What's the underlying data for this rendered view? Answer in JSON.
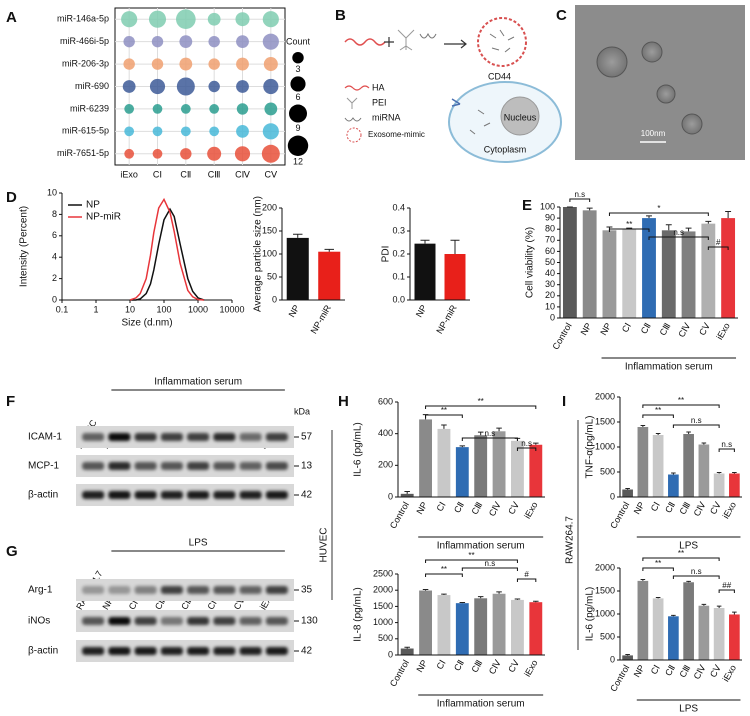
{
  "panel_labels": [
    "A",
    "B",
    "C",
    "D",
    "E",
    "F",
    "G",
    "H",
    "I"
  ],
  "diagram": {
    "legend": [
      "HA",
      "PEI",
      "miRNA",
      "Exosome-mimic"
    ],
    "receptor": "CD44",
    "nucleus": "Nucleus",
    "cytoplasm": "Cytoplasm"
  },
  "micrograph": {
    "scale_bar": "100nm"
  },
  "cell_labels": [
    "HUVEC",
    "RAW264.7"
  ],
  "blots": [
    {
      "header": "Inflammation serum",
      "unit": "kDa",
      "lanes": [
        "HUVEC",
        "NP",
        "CⅠ",
        "CⅡ",
        "CⅢ",
        "CⅣ",
        "CⅤ",
        "iExo"
      ],
      "rows": [
        {
          "name": "ICAM-1",
          "kda": 57
        },
        {
          "name": "MCP-1",
          "kda": 13
        },
        {
          "name": "β-actin",
          "kda": 42
        }
      ]
    },
    {
      "header": "LPS",
      "lanes": [
        "RAW264.7",
        "NP",
        "CⅠ",
        "CⅡ",
        "CⅢ",
        "CⅣ",
        "CⅤ",
        "iExo"
      ],
      "rows": [
        {
          "name": "Arg-1",
          "kda": 35
        },
        {
          "name": "iNOs",
          "kda": 130
        },
        {
          "name": "β-actin",
          "kda": 42
        }
      ]
    }
  ],
  "chart_data": [
    {
      "type": "dotplot",
      "categories": [
        "iExo",
        "CⅠ",
        "CⅡ",
        "CⅢ",
        "CⅣ",
        "CⅤ"
      ],
      "series": [
        {
          "name": "miR-146a-5p",
          "color": "#7fcdb0",
          "values": [
            7,
            8,
            11,
            4,
            5,
            7
          ]
        },
        {
          "name": "miR-466i-5p",
          "color": "#8e8fc2",
          "values": [
            3,
            3,
            4,
            3,
            4,
            7
          ]
        },
        {
          "name": "miR-206-3p",
          "color": "#f0a070",
          "values": [
            3,
            3,
            4,
            3,
            4,
            5
          ]
        },
        {
          "name": "miR-690",
          "color": "#3d5a98",
          "values": [
            4,
            6,
            9,
            3,
            4,
            6
          ]
        },
        {
          "name": "miR-6239",
          "color": "#2a9d8f",
          "values": [
            2,
            2,
            2,
            2,
            3,
            4
          ]
        },
        {
          "name": "miR-615-5p",
          "color": "#48b8d8",
          "values": [
            2,
            2,
            2,
            2,
            4,
            7
          ]
        },
        {
          "name": "miR-7651-5p",
          "color": "#e8503a",
          "values": [
            2,
            2,
            3,
            5,
            6,
            9
          ]
        }
      ],
      "size_legend": {
        "title": "Count",
        "values": [
          3,
          6,
          9,
          12
        ]
      }
    },
    {
      "type": "line",
      "xlabel": "Size (d.nm)",
      "ylabel": "Intensity (Percent)",
      "log_x": true,
      "legend": "upper left",
      "x": [
        10,
        15,
        20,
        30,
        40,
        50,
        70,
        100,
        150,
        200,
        300,
        500,
        700,
        1000,
        1500
      ],
      "xlim": [
        0.1,
        10000
      ],
      "xticks": [
        0.1,
        1,
        10,
        100,
        1000,
        10000
      ],
      "ylim": [
        0,
        10
      ],
      "yticks": [
        0,
        2,
        4,
        6,
        8,
        10
      ],
      "series": [
        {
          "name": "NP",
          "color": "#111111",
          "values": [
            0,
            0,
            0.1,
            0.6,
            1.5,
            2.8,
            5.2,
            7.5,
            8.5,
            7.8,
            5.2,
            2.0,
            0.8,
            0.2,
            0
          ]
        },
        {
          "name": "NP-miR",
          "color": "#e8353a",
          "values": [
            0,
            0.2,
            0.6,
            2.0,
            4.2,
            6.3,
            8.6,
            9.4,
            8.2,
            6.4,
            3.4,
            0.9,
            0.3,
            0.05,
            0
          ]
        }
      ]
    },
    {
      "type": "bar",
      "ylabel": "Average particle size (nm)",
      "categories": [
        "NP",
        "NP-miR"
      ],
      "values": [
        135,
        105
      ],
      "errors": [
        8,
        5
      ],
      "colors": [
        "#111111",
        "#e8201a"
      ],
      "ylim": [
        0,
        200
      ],
      "yticks": [
        0,
        50,
        100,
        150,
        200
      ]
    },
    {
      "type": "bar",
      "ylabel": "PDI",
      "categories": [
        "NP",
        "NP-miR"
      ],
      "values": [
        0.245,
        0.2
      ],
      "errors": [
        0.015,
        0.06
      ],
      "colors": [
        "#111111",
        "#e8201a"
      ],
      "ylim": [
        0,
        0.4
      ],
      "yticks": [
        {
          "value": 0,
          "label": "0.0"
        },
        0.1,
        0.2,
        0.3,
        0.4
      ]
    },
    {
      "type": "bar",
      "ylabel": "Cell viability (%)",
      "categories": [
        "Control",
        "NP",
        "NP",
        "CⅠ",
        "CⅡ",
        "CⅢ",
        "CⅣ",
        "CⅤ",
        "iExo"
      ],
      "values": [
        100,
        97,
        79,
        80,
        90,
        79,
        78,
        85,
        90
      ],
      "errors": [
        0,
        2,
        3,
        1,
        2,
        5,
        3,
        2,
        6
      ],
      "colors": [
        "#5a5a5a",
        "#8a8a8a",
        "#9a9a9a",
        "#c8c8c8",
        "#2f6cb3",
        "#6a6a6a",
        "#808080",
        "#b0b0b0",
        "#e8353a"
      ],
      "ylim": [
        0,
        100
      ],
      "yticks": [
        0,
        10,
        20,
        30,
        40,
        50,
        60,
        70,
        80,
        90,
        100
      ],
      "group_label": "Inflammation serum",
      "annotations": [
        "n.s",
        "*",
        "**",
        "n.s",
        "#"
      ]
    },
    {
      "type": "bar",
      "ylabel": "IL-6 (pg/mL)",
      "categories": [
        "Control",
        "NP",
        "CⅠ",
        "CⅡ",
        "CⅢ",
        "CⅣ",
        "CⅤ",
        "iExo"
      ],
      "values": [
        20,
        490,
        430,
        315,
        390,
        415,
        355,
        330
      ],
      "errors": [
        15,
        30,
        25,
        8,
        20,
        20,
        15,
        10
      ],
      "colors": [
        "#5a5a5a",
        "#8a8a8a",
        "#c8c8c8",
        "#2f6cb3",
        "#7a7a7a",
        "#9a9a9a",
        "#c8c8c8",
        "#e8353a"
      ],
      "ylim": [
        0,
        600
      ],
      "yticks": [
        0,
        200,
        400,
        600
      ],
      "group_label": "Inflammation serum",
      "annotations": [
        "**",
        "**",
        "n.s",
        "n.s"
      ]
    },
    {
      "type": "bar",
      "ylabel": "IL-8 (pg/mL)",
      "categories": [
        "Control",
        "NP",
        "CⅠ",
        "CⅡ",
        "CⅢ",
        "CⅣ",
        "CⅤ",
        "iExo"
      ],
      "values": [
        200,
        1990,
        1850,
        1600,
        1750,
        1890,
        1700,
        1630
      ],
      "errors": [
        40,
        30,
        30,
        20,
        50,
        60,
        30,
        30
      ],
      "colors": [
        "#5a5a5a",
        "#8a8a8a",
        "#c8c8c8",
        "#2f6cb3",
        "#7a7a7a",
        "#9a9a9a",
        "#c8c8c8",
        "#e8353a"
      ],
      "ylim": [
        0,
        2500
      ],
      "yticks": [
        0,
        500,
        1000,
        1500,
        2000,
        2500
      ],
      "group_label": "Inflammation serum",
      "annotations": [
        "**",
        "**",
        "n.s",
        "#"
      ]
    },
    {
      "type": "bar",
      "ylabel": "TNF-α(pg/mL)",
      "categories": [
        "Control",
        "NP",
        "CⅠ",
        "CⅡ",
        "CⅢ",
        "CⅣ",
        "CⅤ",
        "iExo"
      ],
      "values": [
        150,
        1400,
        1240,
        450,
        1260,
        1050,
        470,
        470
      ],
      "errors": [
        20,
        30,
        30,
        30,
        40,
        30,
        20,
        20
      ],
      "colors": [
        "#5a5a5a",
        "#8a8a8a",
        "#c8c8c8",
        "#2f6cb3",
        "#7a7a7a",
        "#9a9a9a",
        "#c8c8c8",
        "#e8353a"
      ],
      "ylim": [
        0,
        2000
      ],
      "yticks": [
        0,
        500,
        1000,
        1500,
        2000
      ],
      "group_label": "LPS",
      "annotations": [
        "**",
        "**",
        "n.s",
        "n.s"
      ]
    },
    {
      "type": "bar",
      "ylabel": "IL-6 (pg/mL)",
      "categories": [
        "Control",
        "NP",
        "CⅠ",
        "CⅡ",
        "CⅢ",
        "CⅣ",
        "CⅤ",
        "iExo"
      ],
      "values": [
        100,
        1720,
        1340,
        950,
        1690,
        1180,
        1130,
        990
      ],
      "errors": [
        20,
        30,
        20,
        20,
        20,
        30,
        40,
        50
      ],
      "colors": [
        "#5a5a5a",
        "#8a8a8a",
        "#c8c8c8",
        "#2f6cb3",
        "#7a7a7a",
        "#9a9a9a",
        "#c8c8c8",
        "#e8353a"
      ],
      "ylim": [
        0,
        2000
      ],
      "yticks": [
        0,
        500,
        1000,
        1500,
        2000
      ],
      "group_label": "LPS",
      "annotations": [
        "**",
        "**",
        "n.s",
        "##"
      ]
    }
  ]
}
